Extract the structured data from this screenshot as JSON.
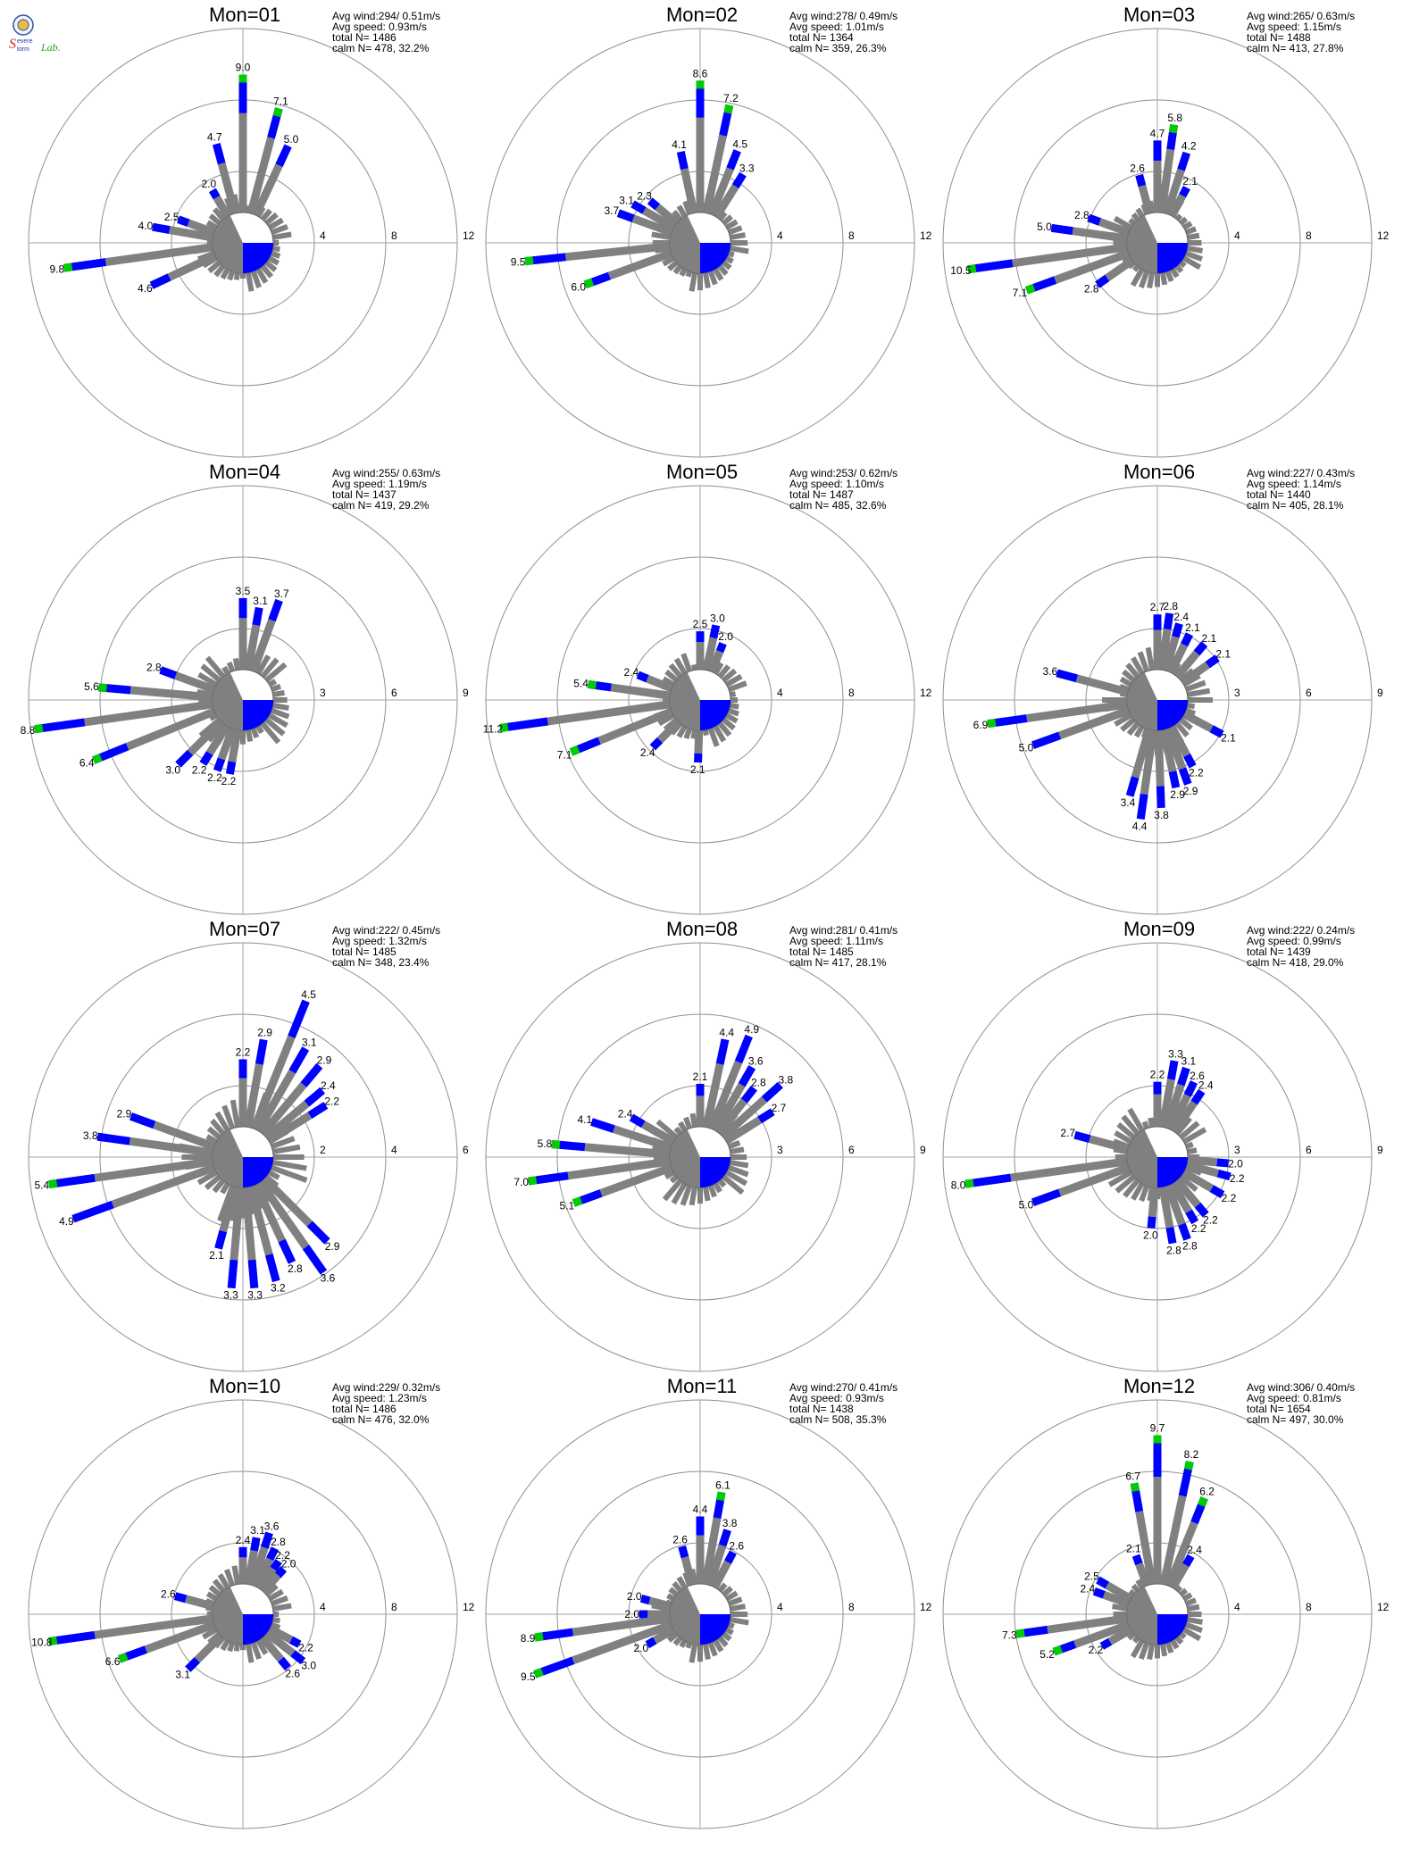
{
  "logo": {
    "text_line1": "Severe",
    "text_line2": "Storm",
    "text_line3": "Lab.",
    "colors": {
      "s": "#d02020",
      "storm": "#2030c0",
      "lab": "#20a020"
    }
  },
  "colors": {
    "calm_wedge": "#808080",
    "blue": "#0000ff",
    "grey": "#808080",
    "green": "#00cc00",
    "orange": "#ff8800",
    "red": "#ff0000",
    "ring": "#909090",
    "axis": "#a0a0a0",
    "text": "#000000"
  },
  "stats_labels": {
    "avg_wind": "Avg wind:",
    "avg_speed": "Avg speed:",
    "total": "total N=",
    "calm": "calm N="
  },
  "chart_data": [
    {
      "type": "polar-bar",
      "title": "Mon=01",
      "stats": {
        "avg_wind": "294/ 0.51m/s",
        "avg_speed": "0.93m/s",
        "total_n": "1486",
        "calm_n": "478,  32.2%"
      },
      "ring_max": 12,
      "ring_ticks": [
        "4",
        "8",
        "12"
      ],
      "calm_direction_deg": [
        -18,
        92
      ],
      "bars": [
        {
          "dir": 0,
          "value": 9.0,
          "label": "9.0"
        },
        {
          "dir": 15,
          "value": 7.1,
          "label": "7.1"
        },
        {
          "dir": 25,
          "value": 5.0,
          "label": "5.0"
        },
        {
          "dir": 345,
          "value": 4.7,
          "label": "4.7"
        },
        {
          "dir": 330,
          "value": 2.0,
          "label": "2.0"
        },
        {
          "dir": 290,
          "value": 2.5,
          "label": "2.5"
        },
        {
          "dir": 280,
          "value": 4.0,
          "label": "4.0"
        },
        {
          "dir": 262,
          "value": 9.8,
          "label": "9.8"
        },
        {
          "dir": 245,
          "value": 4.6,
          "label": "4.6"
        }
      ]
    },
    {
      "type": "polar-bar",
      "title": "Mon=02",
      "stats": {
        "avg_wind": "278/ 0.49m/s",
        "avg_speed": "1.01m/s",
        "total_n": "1364",
        "calm_n": "359,  26.3%"
      },
      "ring_max": 12,
      "ring_ticks": [
        "4",
        "8",
        "12"
      ],
      "bars": [
        {
          "dir": 0,
          "value": 8.6,
          "label": "8.6"
        },
        {
          "dir": 12,
          "value": 7.2,
          "label": "7.2"
        },
        {
          "dir": 22,
          "value": 4.5,
          "label": "4.5"
        },
        {
          "dir": 32,
          "value": 3.3,
          "label": "3.3"
        },
        {
          "dir": 348,
          "value": 4.1,
          "label": "4.1"
        },
        {
          "dir": 310,
          "value": 2.3,
          "label": "2.3"
        },
        {
          "dir": 300,
          "value": 3.1,
          "label": "3.1"
        },
        {
          "dir": 290,
          "value": 3.7,
          "label": "3.7"
        },
        {
          "dir": 264,
          "value": 9.5,
          "label": "9.5"
        },
        {
          "dir": 250,
          "value": 6.0,
          "label": "6.0"
        }
      ]
    },
    {
      "type": "polar-bar",
      "title": "Mon=03",
      "stats": {
        "avg_wind": "265/ 0.63m/s",
        "avg_speed": "1.15m/s",
        "total_n": "1488",
        "calm_n": "413,  27.8%"
      },
      "ring_max": 12,
      "ring_ticks": [
        "4",
        "8",
        "12"
      ],
      "bars": [
        {
          "dir": 8,
          "value": 5.8,
          "label": "5.8"
        },
        {
          "dir": 0,
          "value": 4.7,
          "label": "4.7"
        },
        {
          "dir": 18,
          "value": 4.2,
          "label": "4.2"
        },
        {
          "dir": 345,
          "value": 2.6,
          "label": "2.6"
        },
        {
          "dir": 28,
          "value": 2.1,
          "label": "2.1"
        },
        {
          "dir": 290,
          "value": 2.8,
          "label": "2.8"
        },
        {
          "dir": 278,
          "value": 5.0,
          "label": "5.0"
        },
        {
          "dir": 262,
          "value": 10.5,
          "label": "10.5"
        },
        {
          "dir": 250,
          "value": 7.1,
          "label": "7.1"
        },
        {
          "dir": 235,
          "value": 2.8,
          "label": "2.8"
        }
      ]
    },
    {
      "type": "polar-bar",
      "title": "Mon=04",
      "stats": {
        "avg_wind": "255/ 0.63m/s",
        "avg_speed": "1.19m/s",
        "total_n": "1437",
        "calm_n": "419,  29.2%"
      },
      "ring_max": 9,
      "ring_ticks": [
        "3",
        "6",
        "9"
      ],
      "bars": [
        {
          "dir": 0,
          "value": 3.5,
          "label": "3.5"
        },
        {
          "dir": 10,
          "value": 3.1,
          "label": "3.1"
        },
        {
          "dir": 20,
          "value": 3.7,
          "label": "3.7"
        },
        {
          "dir": 290,
          "value": 2.8,
          "label": "2.8"
        },
        {
          "dir": 275,
          "value": 5.6,
          "label": "5.6"
        },
        {
          "dir": 262,
          "value": 8.8,
          "label": "8.8"
        },
        {
          "dir": 248,
          "value": 6.4,
          "label": "6.4"
        },
        {
          "dir": 225,
          "value": 3.0,
          "label": "3.0"
        },
        {
          "dir": 212,
          "value": 2.2,
          "label": "2.2"
        },
        {
          "dir": 200,
          "value": 2.2,
          "label": "2.2"
        },
        {
          "dir": 190,
          "value": 2.2,
          "label": "2.2"
        }
      ]
    },
    {
      "type": "polar-bar",
      "title": "Mon=05",
      "stats": {
        "avg_wind": "253/ 0.62m/s",
        "avg_speed": "1.10m/s",
        "total_n": "1487",
        "calm_n": "485,  32.6%"
      },
      "ring_max": 12,
      "ring_ticks": [
        "4",
        "8",
        "12"
      ],
      "bars": [
        {
          "dir": 0,
          "value": 2.5,
          "label": "2.5"
        },
        {
          "dir": 12,
          "value": 3.0,
          "label": "3.0"
        },
        {
          "dir": 22,
          "value": 2.0,
          "label": "2.0"
        },
        {
          "dir": 292,
          "value": 2.4,
          "label": "2.4"
        },
        {
          "dir": 278,
          "value": 5.4,
          "label": "5.4"
        },
        {
          "dir": 262,
          "value": 11.2,
          "label": "11.2"
        },
        {
          "dir": 248,
          "value": 7.1,
          "label": "7.1"
        },
        {
          "dir": 225,
          "value": 2.4,
          "label": "2.4"
        },
        {
          "dir": 182,
          "value": 2.1,
          "label": "2.1"
        }
      ]
    },
    {
      "type": "polar-bar",
      "title": "Mon=06",
      "stats": {
        "avg_wind": "227/ 0.43m/s",
        "avg_speed": "1.14m/s",
        "total_n": "1440",
        "calm_n": "405,  28.1%"
      },
      "ring_max": 9,
      "ring_ticks": [
        "3",
        "6",
        "9"
      ],
      "bars": [
        {
          "dir": 0,
          "value": 2.7,
          "label": "2.7"
        },
        {
          "dir": 8,
          "value": 2.8,
          "label": "2.8"
        },
        {
          "dir": 16,
          "value": 2.4,
          "label": "2.4"
        },
        {
          "dir": 26,
          "value": 2.1,
          "label": "2.1"
        },
        {
          "dir": 40,
          "value": 2.1,
          "label": "2.1"
        },
        {
          "dir": 55,
          "value": 2.1,
          "label": "2.1"
        },
        {
          "dir": 285,
          "value": 3.6,
          "label": "3.6"
        },
        {
          "dir": 262,
          "value": 6.9,
          "label": "6.9"
        },
        {
          "dir": 250,
          "value": 5.0,
          "label": "5.0"
        },
        {
          "dir": 118,
          "value": 2.1,
          "label": "2.1"
        },
        {
          "dir": 188,
          "value": 4.4,
          "label": "4.4"
        },
        {
          "dir": 178,
          "value": 3.8,
          "label": "3.8"
        },
        {
          "dir": 168,
          "value": 2.9,
          "label": "2.9"
        },
        {
          "dir": 160,
          "value": 2.9,
          "label": "2.9"
        },
        {
          "dir": 152,
          "value": 2.2,
          "label": "2.2"
        },
        {
          "dir": 196,
          "value": 3.4,
          "label": "3.4"
        }
      ]
    },
    {
      "type": "polar-bar",
      "title": "Mon=07",
      "stats": {
        "avg_wind": "222/ 0.45m/s",
        "avg_speed": "1.32m/s",
        "total_n": "1485",
        "calm_n": "348,  23.4%"
      },
      "ring_max": 6,
      "ring_ticks": [
        "2",
        "4",
        "6"
      ],
      "bars": [
        {
          "dir": 0,
          "value": 2.2,
          "label": "2.2"
        },
        {
          "dir": 10,
          "value": 2.9,
          "label": "2.9"
        },
        {
          "dir": 22,
          "value": 4.5,
          "label": "4.5"
        },
        {
          "dir": 30,
          "value": 3.1,
          "label": "3.1"
        },
        {
          "dir": 40,
          "value": 2.9,
          "label": "2.9"
        },
        {
          "dir": 50,
          "value": 2.4,
          "label": "2.4"
        },
        {
          "dir": 58,
          "value": 2.2,
          "label": "2.2"
        },
        {
          "dir": 290,
          "value": 2.9,
          "label": "2.9"
        },
        {
          "dir": 278,
          "value": 3.8,
          "label": "3.8"
        },
        {
          "dir": 262,
          "value": 5.4,
          "label": "5.4"
        },
        {
          "dir": 250,
          "value": 4.9,
          "label": "4.9"
        },
        {
          "dir": 195,
          "value": 2.1,
          "label": "2.1"
        },
        {
          "dir": 185,
          "value": 3.3,
          "label": "3.3"
        },
        {
          "dir": 175,
          "value": 3.3,
          "label": "3.3"
        },
        {
          "dir": 165,
          "value": 3.2,
          "label": "3.2"
        },
        {
          "dir": 155,
          "value": 2.8,
          "label": "2.8"
        },
        {
          "dir": 145,
          "value": 3.6,
          "label": "3.6"
        },
        {
          "dir": 135,
          "value": 2.9,
          "label": "2.9"
        }
      ]
    },
    {
      "type": "polar-bar",
      "title": "Mon=08",
      "stats": {
        "avg_wind": "281/ 0.41m/s",
        "avg_speed": "1.11m/s",
        "total_n": "1485",
        "calm_n": "417,  28.1%"
      },
      "ring_max": 9,
      "ring_ticks": [
        "3",
        "6",
        "9"
      ],
      "bars": [
        {
          "dir": 0,
          "value": 2.1,
          "label": "2.1"
        },
        {
          "dir": 12,
          "value": 4.4,
          "label": "4.4"
        },
        {
          "dir": 22,
          "value": 4.9,
          "label": "4.9"
        },
        {
          "dir": 30,
          "value": 3.6,
          "label": "3.6"
        },
        {
          "dir": 38,
          "value": 2.8,
          "label": "2.8"
        },
        {
          "dir": 48,
          "value": 3.8,
          "label": "3.8"
        },
        {
          "dir": 58,
          "value": 2.7,
          "label": "2.7"
        },
        {
          "dir": 300,
          "value": 2.4,
          "label": "2.4"
        },
        {
          "dir": 288,
          "value": 4.1,
          "label": "4.1"
        },
        {
          "dir": 275,
          "value": 5.8,
          "label": "5.8"
        },
        {
          "dir": 262,
          "value": 7.0,
          "label": "7.0"
        },
        {
          "dir": 250,
          "value": 5.1,
          "label": "5.1"
        }
      ]
    },
    {
      "type": "polar-bar",
      "title": "Mon=09",
      "stats": {
        "avg_wind": "222/ 0.24m/s",
        "avg_speed": "0.99m/s",
        "total_n": "1439",
        "calm_n": "418,  29.0%"
      },
      "ring_max": 9,
      "ring_ticks": [
        "3",
        "6",
        "9"
      ],
      "bars": [
        {
          "dir": 0,
          "value": 2.2,
          "label": "2.2"
        },
        {
          "dir": 10,
          "value": 3.3,
          "label": "3.3"
        },
        {
          "dir": 18,
          "value": 3.1,
          "label": "3.1"
        },
        {
          "dir": 26,
          "value": 2.6,
          "label": "2.6"
        },
        {
          "dir": 34,
          "value": 2.4,
          "label": "2.4"
        },
        {
          "dir": 285,
          "value": 2.7,
          "label": "2.7"
        },
        {
          "dir": 262,
          "value": 8.0,
          "label": "8.0"
        },
        {
          "dir": 250,
          "value": 5.0,
          "label": "5.0"
        },
        {
          "dir": 95,
          "value": 2.0,
          "label": "2.0"
        },
        {
          "dir": 105,
          "value": 2.2,
          "label": "2.2"
        },
        {
          "dir": 120,
          "value": 2.2,
          "label": "2.2"
        },
        {
          "dir": 140,
          "value": 2.2,
          "label": "2.2"
        },
        {
          "dir": 150,
          "value": 2.2,
          "label": "2.2"
        },
        {
          "dir": 160,
          "value": 2.8,
          "label": "2.8"
        },
        {
          "dir": 170,
          "value": 2.8,
          "label": "2.8"
        },
        {
          "dir": 185,
          "value": 2.0,
          "label": "2.0"
        }
      ]
    },
    {
      "type": "polar-bar",
      "title": "Mon=10",
      "stats": {
        "avg_wind": "229/ 0.32m/s",
        "avg_speed": "1.23m/s",
        "total_n": "1486",
        "calm_n": "476,  32.0%"
      },
      "ring_max": 12,
      "ring_ticks": [
        "4",
        "8",
        "12"
      ],
      "bars": [
        {
          "dir": 0,
          "value": 2.4,
          "label": "2.4"
        },
        {
          "dir": 10,
          "value": 3.1,
          "label": "3.1"
        },
        {
          "dir": 18,
          "value": 3.6,
          "label": "3.6"
        },
        {
          "dir": 26,
          "value": 2.8,
          "label": "2.8"
        },
        {
          "dir": 34,
          "value": 2.2,
          "label": "2.2"
        },
        {
          "dir": 42,
          "value": 2.0,
          "label": "2.0"
        },
        {
          "dir": 285,
          "value": 2.6,
          "label": "2.6"
        },
        {
          "dir": 262,
          "value": 10.8,
          "label": "10.8"
        },
        {
          "dir": 250,
          "value": 6.6,
          "label": "6.6"
        },
        {
          "dir": 225,
          "value": 3.1,
          "label": "3.1"
        },
        {
          "dir": 140,
          "value": 2.6,
          "label": "2.6"
        },
        {
          "dir": 128,
          "value": 3.0,
          "label": "3.0"
        },
        {
          "dir": 118,
          "value": 2.2,
          "label": "2.2"
        }
      ]
    },
    {
      "type": "polar-bar",
      "title": "Mon=11",
      "stats": {
        "avg_wind": "270/ 0.41m/s",
        "avg_speed": "0.93m/s",
        "total_n": "1438",
        "calm_n": "508,  35.3%"
      },
      "ring_max": 12,
      "ring_ticks": [
        "4",
        "8",
        "12"
      ],
      "bars": [
        {
          "dir": 0,
          "value": 4.4,
          "label": "4.4"
        },
        {
          "dir": 10,
          "value": 6.1,
          "label": "6.1"
        },
        {
          "dir": 18,
          "value": 3.8,
          "label": "3.8"
        },
        {
          "dir": 28,
          "value": 2.6,
          "label": "2.6"
        },
        {
          "dir": 345,
          "value": 2.6,
          "label": "2.6"
        },
        {
          "dir": 285,
          "value": 2.0,
          "label": "2.0"
        },
        {
          "dir": 270,
          "value": 2.0,
          "label": "2.0"
        },
        {
          "dir": 262,
          "value": 8.9,
          "label": "8.9"
        },
        {
          "dir": 250,
          "value": 9.5,
          "label": "9.5"
        },
        {
          "dir": 240,
          "value": 2.0,
          "label": "2.0"
        }
      ]
    },
    {
      "type": "polar-bar",
      "title": "Mon=12",
      "stats": {
        "avg_wind": "306/ 0.40m/s",
        "avg_speed": "0.81m/s",
        "total_n": "1654",
        "calm_n": "497,  30.0%"
      },
      "ring_max": 12,
      "ring_ticks": [
        "4",
        "8",
        "12"
      ],
      "bars": [
        {
          "dir": 0,
          "value": 9.7,
          "label": "9.7"
        },
        {
          "dir": 12,
          "value": 8.2,
          "label": "8.2"
        },
        {
          "dir": 22,
          "value": 6.2,
          "label": "6.2"
        },
        {
          "dir": 30,
          "value": 2.4,
          "label": "2.4"
        },
        {
          "dir": 350,
          "value": 6.7,
          "label": "6.7"
        },
        {
          "dir": 340,
          "value": 2.1,
          "label": "2.1"
        },
        {
          "dir": 300,
          "value": 2.5,
          "label": "2.5"
        },
        {
          "dir": 290,
          "value": 2.4,
          "label": "2.4"
        },
        {
          "dir": 262,
          "value": 7.3,
          "label": "7.3"
        },
        {
          "dir": 250,
          "value": 5.2,
          "label": "5.2"
        },
        {
          "dir": 240,
          "value": 2.2,
          "label": "2.2"
        }
      ]
    }
  ]
}
